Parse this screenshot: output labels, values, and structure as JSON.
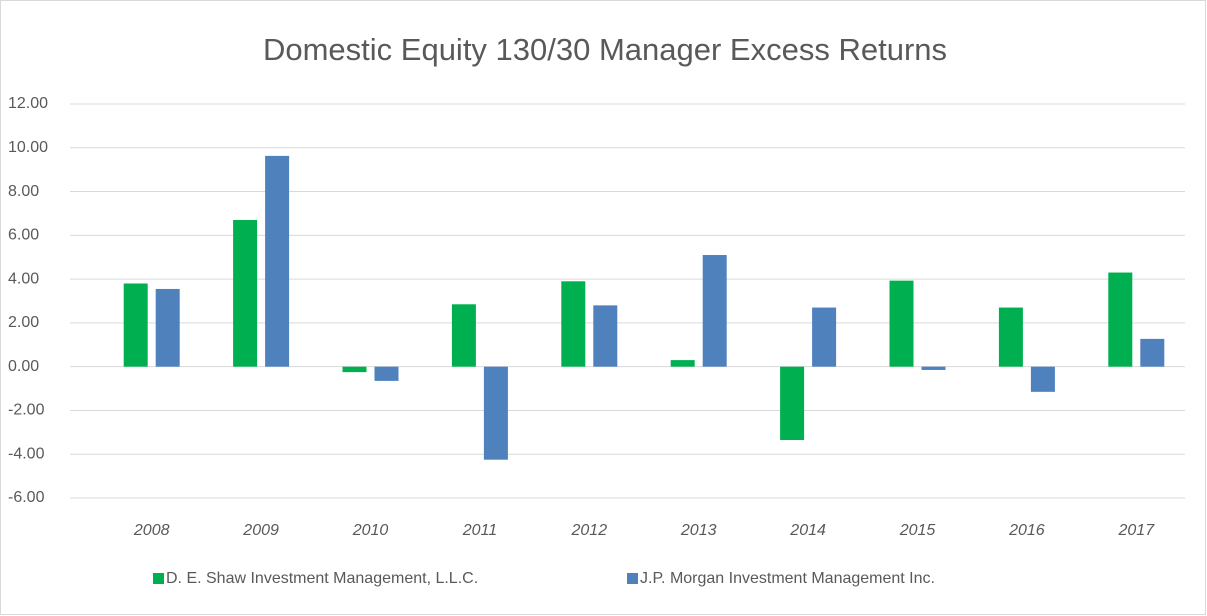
{
  "chart_data": {
    "type": "bar",
    "title": "Domestic Equity 130/30 Manager Excess Returns",
    "categories": [
      "2008",
      "2009",
      "2010",
      "2011",
      "2012",
      "2013",
      "2014",
      "2015",
      "2016",
      "2017"
    ],
    "series": [
      {
        "name": "D. E. Shaw Investment Management, L.L.C.",
        "color": "#00b050",
        "values": [
          3.8,
          6.7,
          -0.25,
          2.85,
          3.9,
          0.3,
          -3.35,
          3.93,
          2.7,
          4.3
        ]
      },
      {
        "name": "J.P. Morgan Investment Management Inc.",
        "color": "#4f81bd",
        "values": [
          3.55,
          9.63,
          -0.65,
          -4.25,
          2.8,
          5.1,
          2.7,
          -0.15,
          -1.15,
          1.27
        ]
      }
    ],
    "ylim": [
      -6,
      12
    ],
    "yticks": [
      {
        "value": -6,
        "label": "-6.00"
      },
      {
        "value": -4,
        "label": "-4.00"
      },
      {
        "value": -2,
        "label": "-2.00"
      },
      {
        "value": 0,
        "label": "0.00"
      },
      {
        "value": 2,
        "label": "2.00"
      },
      {
        "value": 4,
        "label": "4.00"
      },
      {
        "value": 6,
        "label": "6.00"
      },
      {
        "value": 8,
        "label": "8.00"
      },
      {
        "value": 10,
        "label": "10.00"
      },
      {
        "value": 12,
        "label": "12.00"
      }
    ],
    "grid": true,
    "legend": "bottom"
  }
}
